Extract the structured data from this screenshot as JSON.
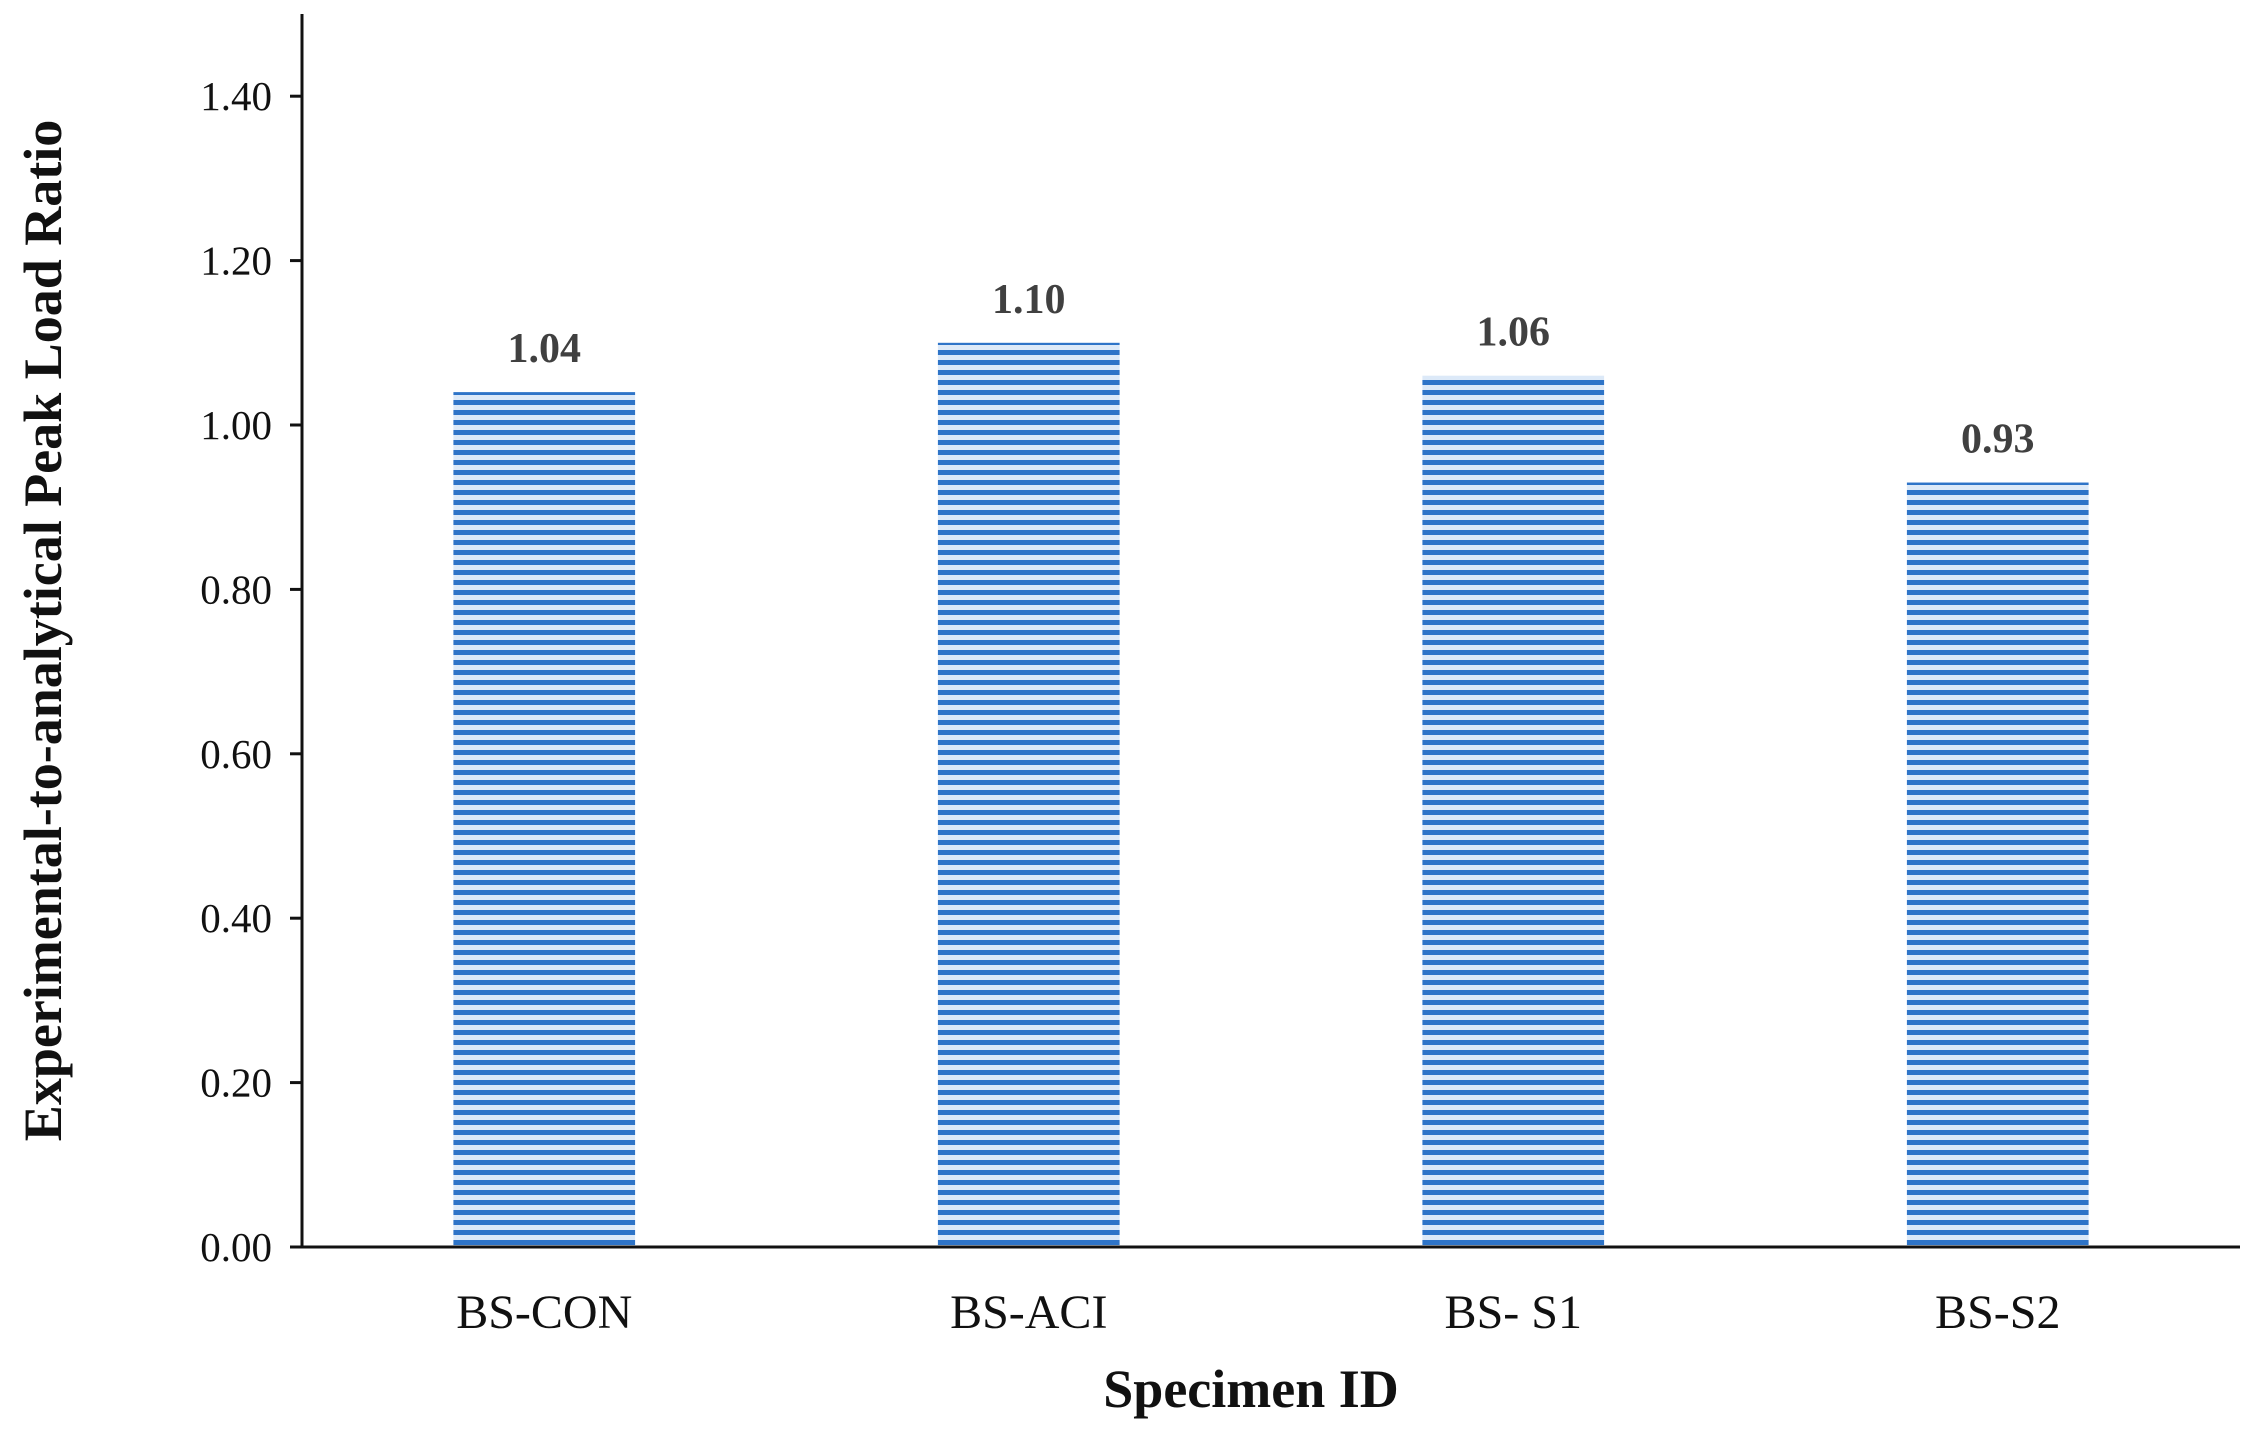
{
  "chart_data": {
    "type": "bar",
    "categories": [
      "BS-CON",
      "BS-ACI",
      "BS- S1",
      "BS-S2"
    ],
    "values": [
      1.04,
      1.1,
      1.06,
      0.93
    ],
    "data_labels": [
      "1.04",
      "1.10",
      "1.06",
      "0.93"
    ],
    "title": "",
    "xlabel": "Specimen ID",
    "ylabel": "Experimental-to-analytical Peak Load Ratio",
    "ylim": [
      0,
      1.5
    ],
    "yticks": [
      0.0,
      0.2,
      0.4,
      0.6,
      0.8,
      1.0,
      1.2,
      1.4
    ],
    "ytick_labels": [
      "0.00",
      "0.20",
      "0.40",
      "0.60",
      "0.80",
      "1.00",
      "1.20",
      "1.40"
    ],
    "grid": false,
    "legend": "none",
    "bar_fill": "horizontal-stripes",
    "colors": {
      "bar_dark": "#2e74c8",
      "bar_light": "#dce9f8",
      "axis": "#111111",
      "data_label": "#404040"
    }
  }
}
